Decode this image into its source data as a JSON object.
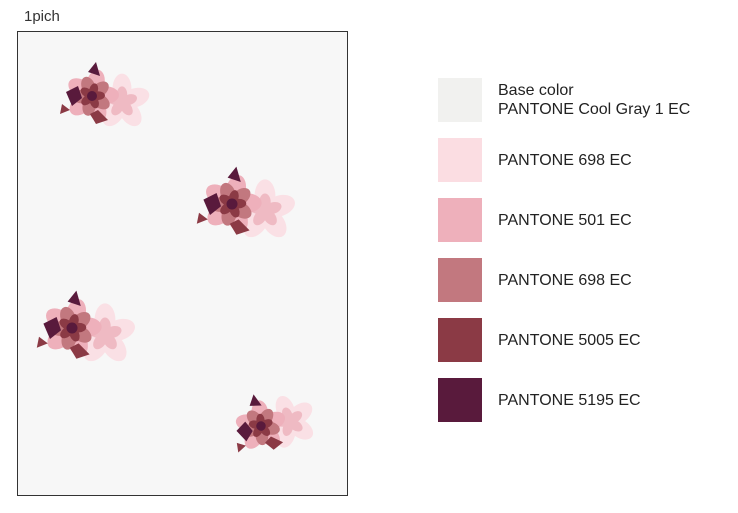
{
  "title": "1pich",
  "legend": [
    {
      "lines": [
        "Base color",
        "PANTONE Cool Gray 1 EC"
      ],
      "color": "#f1f1ef"
    },
    {
      "lines": [
        "PANTONE 698 EC"
      ],
      "color": "#fbdde2"
    },
    {
      "lines": [
        "PANTONE 501 EC"
      ],
      "color": "#eeb0bb"
    },
    {
      "lines": [
        "PANTONE 698 EC"
      ],
      "color": "#c2787f"
    },
    {
      "lines": [
        "PANTONE 5005 EC"
      ],
      "color": "#8b3a45"
    },
    {
      "lines": [
        "PANTONE 5195 EC"
      ],
      "color": "#591a3c"
    }
  ]
}
